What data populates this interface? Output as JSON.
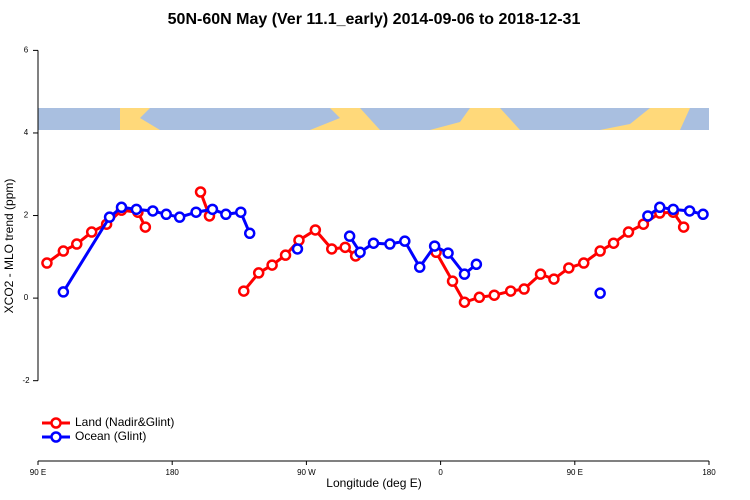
{
  "chart_data": {
    "type": "line",
    "title": "50N-60N May (Ver 11.1_early)   2014-09-06 to 2018-12-31",
    "x_label": "Longitude (deg E)",
    "y_label": "XCO2 - MLO trend (ppm)",
    "xlim": [
      90,
      540
    ],
    "xticks": [
      {
        "value": 90,
        "label": "90 E"
      },
      {
        "value": 180,
        "label": "180"
      },
      {
        "value": 270,
        "label": "90 W"
      },
      {
        "value": 360,
        "label": "0"
      },
      {
        "value": 450,
        "label": "90 E"
      },
      {
        "value": 540,
        "label": "180"
      }
    ],
    "ylim": [
      -3.8,
      6.3
    ],
    "yticks": [
      -2,
      0,
      2,
      4,
      6
    ],
    "legend": "bottom-left",
    "series": [
      {
        "name": "Land (Nadir&Glint)",
        "color": "#ff0000",
        "x": [
          96,
          107,
          116,
          126,
          136,
          146,
          157,
          162,
          180,
          199,
          205,
          215,
          228,
          238,
          247,
          256,
          265,
          276,
          287,
          296,
          303,
          330,
          357,
          368,
          376,
          386,
          396,
          407,
          416,
          427,
          436,
          446,
          456,
          467,
          476,
          486,
          496,
          507,
          516,
          523
        ],
        "values": [
          0.85,
          1.14,
          1.31,
          1.6,
          1.79,
          2.13,
          2.08,
          1.72,
          null,
          2.57,
          1.99,
          null,
          0.17,
          0.61,
          0.8,
          1.04,
          1.4,
          1.65,
          1.19,
          1.23,
          1.02,
          null,
          1.11,
          0.41,
          -0.1,
          0.02,
          0.07,
          0.17,
          0.22,
          0.58,
          0.46,
          0.73,
          0.85,
          1.14,
          1.33,
          1.6,
          1.79,
          2.06,
          2.08,
          1.72
        ]
      },
      {
        "name": "Ocean (Glint)",
        "color": "#0000ff",
        "x": [
          107,
          138,
          146,
          156,
          167,
          176,
          185,
          196,
          207,
          216,
          226,
          232,
          248,
          264,
          280,
          299,
          306,
          315,
          326,
          336,
          346,
          356,
          365,
          376,
          384,
          420,
          467,
          485,
          499,
          507,
          516,
          527,
          536
        ],
        "values": [
          0.15,
          1.96,
          2.2,
          2.15,
          2.11,
          2.03,
          1.96,
          2.08,
          2.15,
          2.03,
          2.08,
          1.57,
          null,
          1.19,
          null,
          1.5,
          1.11,
          1.33,
          1.31,
          1.38,
          0.75,
          1.26,
          1.09,
          0.58,
          0.82,
          null,
          0.12,
          null,
          1.99,
          2.2,
          2.15,
          2.11,
          2.03
        ]
      }
    ]
  }
}
